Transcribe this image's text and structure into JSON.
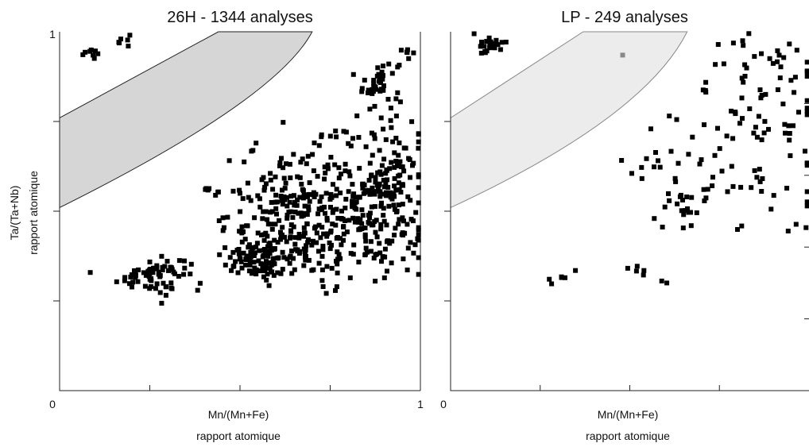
{
  "chart_data": [
    {
      "type": "scatter",
      "title": "26H - 1344 analyses",
      "xlabel": [
        "Mn/(Mn+Fe)",
        "rapport atomique"
      ],
      "ylabel": [
        "Ta/(Ta+Nb)",
        "rapport atomique"
      ],
      "xlim": [
        0,
        1
      ],
      "ylim": [
        0,
        1
      ],
      "x_tick_labels": [
        "0",
        "1"
      ],
      "y_tick_labels": [
        "1"
      ],
      "grid": false,
      "field_polygon": {
        "fill": "#d6d6d6",
        "stroke": "#222222",
        "lower_edge": [
          [
            0,
            0.51
          ],
          [
            0.6,
            0.81
          ],
          [
            0.7,
            1.0
          ]
        ],
        "upper_edge": [
          [
            0,
            0.76
          ],
          [
            0.44,
            1.0
          ],
          [
            0.67,
            1.0
          ]
        ]
      },
      "clusters": [
        {
          "cx": 0.09,
          "cy": 0.94,
          "sx": 0.012,
          "sy": 0.012,
          "n": 8
        },
        {
          "cx": 0.175,
          "cy": 0.975,
          "sx": 0.01,
          "sy": 0.01,
          "n": 6
        },
        {
          "cx": 0.89,
          "cy": 0.86,
          "sx": 0.03,
          "sy": 0.035,
          "n": 40
        },
        {
          "cx": 0.965,
          "cy": 0.94,
          "sx": 0.015,
          "sy": 0.007,
          "n": 6
        },
        {
          "cx": 0.41,
          "cy": 0.56,
          "sx": 0.018,
          "sy": 0.012,
          "n": 8
        },
        {
          "cx": 0.26,
          "cy": 0.32,
          "sx": 0.05,
          "sy": 0.025,
          "n": 70
        },
        {
          "cx": 0.72,
          "cy": 0.45,
          "sx": 0.13,
          "sy": 0.07,
          "n": 300
        },
        {
          "cx": 0.9,
          "cy": 0.58,
          "sx": 0.06,
          "sy": 0.1,
          "n": 150
        },
        {
          "cx": 0.66,
          "cy": 0.58,
          "sx": 0.07,
          "sy": 0.06,
          "n": 60
        },
        {
          "cx": 0.55,
          "cy": 0.36,
          "sx": 0.05,
          "sy": 0.025,
          "n": 80
        },
        {
          "cx": 0.8,
          "cy": 0.71,
          "sx": 0.05,
          "sy": 0.03,
          "n": 15
        }
      ],
      "marker_color": "#000000"
    },
    {
      "type": "scatter",
      "title": "LP - 249 analyses",
      "xlabel": [
        "Mn/(Mn+Fe)",
        "rapport atomique"
      ],
      "xlim": [
        0,
        1
      ],
      "ylim": [
        0,
        1
      ],
      "x_tick_labels": [
        "0"
      ],
      "grid": false,
      "field_polygon": {
        "fill": "#ececec",
        "stroke": "#888888",
        "lower_edge": [
          [
            0,
            0.51
          ],
          [
            0.54,
            0.76
          ],
          [
            0.66,
            1.0
          ]
        ],
        "upper_edge": [
          [
            0,
            0.76
          ],
          [
            0.37,
            1.0
          ],
          [
            0.66,
            1.0
          ]
        ]
      },
      "clusters": [
        {
          "cx": 0.11,
          "cy": 0.96,
          "sx": 0.02,
          "sy": 0.012,
          "n": 25
        },
        {
          "cx": 0.88,
          "cy": 0.82,
          "sx": 0.09,
          "sy": 0.08,
          "n": 70
        },
        {
          "cx": 0.8,
          "cy": 0.58,
          "sx": 0.14,
          "sy": 0.08,
          "n": 55
        },
        {
          "cx": 0.62,
          "cy": 0.62,
          "sx": 0.06,
          "sy": 0.06,
          "n": 12
        },
        {
          "cx": 0.62,
          "cy": 0.51,
          "sx": 0.04,
          "sy": 0.03,
          "n": 10
        },
        {
          "cx": 0.32,
          "cy": 0.32,
          "sx": 0.025,
          "sy": 0.012,
          "n": 6
        },
        {
          "cx": 0.5,
          "cy": 0.33,
          "sx": 0.025,
          "sy": 0.012,
          "n": 5
        },
        {
          "cx": 0.6,
          "cy": 0.31,
          "sx": 0.01,
          "sy": 0.01,
          "n": 2
        }
      ],
      "special_points": [
        {
          "x": 0.48,
          "y": 0.935,
          "color": "#888888"
        }
      ],
      "marker_color": "#000000"
    }
  ]
}
